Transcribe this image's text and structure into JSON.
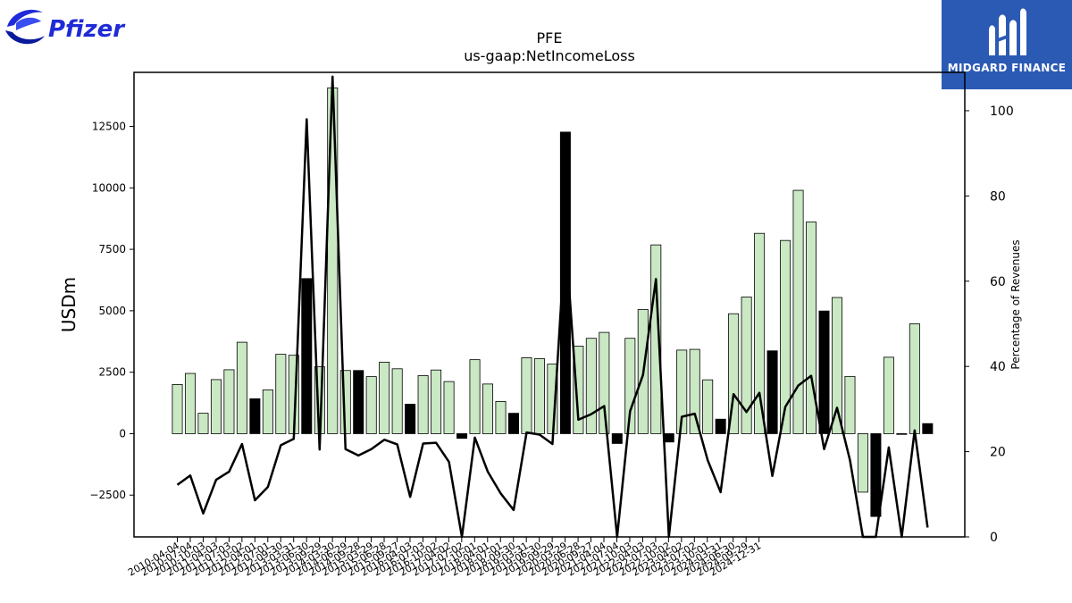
{
  "logos": {
    "left_brand": "Pfizer",
    "right_brand": "MIDGARD FINANCE",
    "right_bg_color": "#2b5ab4",
    "pfizer_color": "#1e2bd6"
  },
  "chart_data": {
    "type": "bar",
    "title": "PFE",
    "subtitle": "us-gaap:NetIncomeLoss",
    "ylabel": "USDm",
    "y2label": "Percentage of Revenues",
    "ylim": [
      -4200,
      14700
    ],
    "y2lim": [
      0,
      109
    ],
    "yticks": [
      -2500,
      0,
      2500,
      5000,
      7500,
      10000,
      12500
    ],
    "y2ticks": [
      0,
      20,
      40,
      60,
      80,
      100
    ],
    "bar_colors": {
      "current": "#c9e8c3",
      "previous": "#000000"
    },
    "line_color": "#000000",
    "x_tick_labels": [
      "2010-04-04",
      "2010-07-04",
      "2010-10-03",
      "2011-04-03",
      "2011-07-03",
      "2011-10-02",
      "2012-04-01",
      "2012-07-01",
      "2012-09-30",
      "2013-03-31",
      "2013-06-30",
      "2013-09-29",
      "2014-03-30",
      "2014-06-29",
      "2014-09-28",
      "2015-03-29",
      "2015-06-28",
      "2015-09-27",
      "2016-04-03",
      "2016-07-03",
      "2016-10-02",
      "2017-04-02",
      "2017-07-02",
      "2017-10-01",
      "2018-04-01",
      "2018-07-01",
      "2018-09-30",
      "2019-03-31",
      "2019-06-30",
      "2019-09-29",
      "2020-03-29",
      "2020-06-28",
      "2020-09-27",
      "2021-04-04",
      "2021-07-04",
      "2021-10-03",
      "2022-04-03",
      "2022-07-03",
      "2022-10-02",
      "2023-04-02",
      "2023-07-02",
      "2023-10-01",
      "2024-03-31",
      "2024-06-30",
      "2024-09-29",
      "2024-12-31"
    ],
    "bars": [
      {
        "value": 2000,
        "kind": "current"
      },
      {
        "value": 2450,
        "kind": "current"
      },
      {
        "value": 830,
        "kind": "current"
      },
      {
        "value": 2200,
        "kind": "current"
      },
      {
        "value": 2600,
        "kind": "current"
      },
      {
        "value": 3720,
        "kind": "current"
      },
      {
        "value": 1420,
        "kind": "previous"
      },
      {
        "value": 1780,
        "kind": "current"
      },
      {
        "value": 3230,
        "kind": "current"
      },
      {
        "value": 3190,
        "kind": "current"
      },
      {
        "value": 6310,
        "kind": "previous"
      },
      {
        "value": 2720,
        "kind": "current"
      },
      {
        "value": 14070,
        "kind": "current"
      },
      {
        "value": 2570,
        "kind": "current"
      },
      {
        "value": 2570,
        "kind": "previous"
      },
      {
        "value": 2320,
        "kind": "current"
      },
      {
        "value": 2910,
        "kind": "current"
      },
      {
        "value": 2640,
        "kind": "current"
      },
      {
        "value": 1200,
        "kind": "previous"
      },
      {
        "value": 2360,
        "kind": "current"
      },
      {
        "value": 2590,
        "kind": "current"
      },
      {
        "value": 2120,
        "kind": "current"
      },
      {
        "value": -190,
        "kind": "previous"
      },
      {
        "value": 3010,
        "kind": "current"
      },
      {
        "value": 2020,
        "kind": "current"
      },
      {
        "value": 1310,
        "kind": "current"
      },
      {
        "value": 830,
        "kind": "previous"
      },
      {
        "value": 3090,
        "kind": "current"
      },
      {
        "value": 3050,
        "kind": "current"
      },
      {
        "value": 2830,
        "kind": "current"
      },
      {
        "value": 12270,
        "kind": "previous"
      },
      {
        "value": 3560,
        "kind": "current"
      },
      {
        "value": 3880,
        "kind": "current"
      },
      {
        "value": 4120,
        "kind": "current"
      },
      {
        "value": -400,
        "kind": "previous"
      },
      {
        "value": 3880,
        "kind": "current"
      },
      {
        "value": 5050,
        "kind": "current"
      },
      {
        "value": 7680,
        "kind": "current"
      },
      {
        "value": -340,
        "kind": "previous"
      },
      {
        "value": 3400,
        "kind": "current"
      },
      {
        "value": 3430,
        "kind": "current"
      },
      {
        "value": 2190,
        "kind": "current"
      },
      {
        "value": 590,
        "kind": "previous"
      },
      {
        "value": 4880,
        "kind": "current"
      },
      {
        "value": 5560,
        "kind": "current"
      },
      {
        "value": 8150,
        "kind": "current"
      },
      {
        "value": 3370,
        "kind": "previous"
      },
      {
        "value": 7860,
        "kind": "current"
      },
      {
        "value": 9900,
        "kind": "current"
      },
      {
        "value": 8610,
        "kind": "current"
      },
      {
        "value": 4990,
        "kind": "previous"
      },
      {
        "value": 5540,
        "kind": "current"
      },
      {
        "value": 2330,
        "kind": "current"
      },
      {
        "value": -2380,
        "kind": "current"
      },
      {
        "value": -3370,
        "kind": "previous"
      },
      {
        "value": 3110,
        "kind": "current"
      },
      {
        "value": -30,
        "kind": "previous"
      },
      {
        "value": 4470,
        "kind": "current"
      },
      {
        "value": 410,
        "kind": "previous"
      }
    ],
    "line_pct_of_revenues": [
      12.2,
      14.4,
      5.5,
      13.4,
      15.3,
      21.8,
      8.6,
      11.7,
      21.5,
      23.0,
      98.0,
      20.5,
      108.0,
      20.6,
      19.1,
      20.6,
      22.8,
      21.7,
      9.4,
      21.9,
      22.1,
      17.6,
      0.0,
      23.3,
      15.3,
      10.2,
      6.3,
      24.5,
      24.0,
      21.8,
      71.0,
      27.5,
      28.8,
      30.7,
      0.0,
      29.5,
      38.0,
      60.5,
      0.0,
      28.2,
      28.9,
      18.0,
      10.5,
      33.5,
      29.3,
      33.8,
      14.3,
      30.5,
      35.5,
      37.8,
      20.6,
      30.3,
      18.0,
      0.0,
      0.0,
      21.0,
      0.0,
      25.0,
      2.2
    ]
  }
}
